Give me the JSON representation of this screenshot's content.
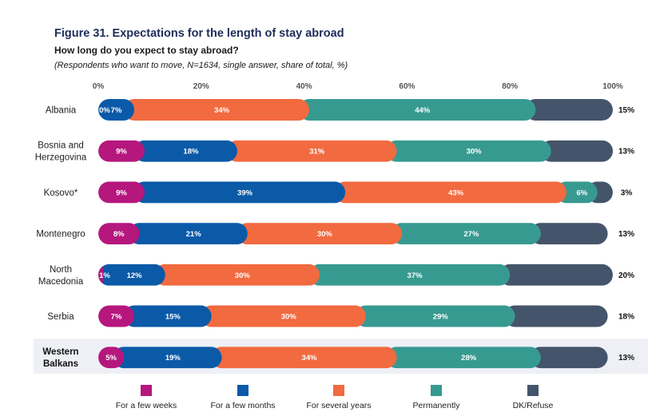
{
  "figure": {
    "title": "Figure 31.  Expectations for the length of stay abroad",
    "subtitle": "How long do you expect to stay abroad?",
    "note": "(Respondents who want to move, N=1634, single answer, share of total, %)"
  },
  "chart_data": {
    "type": "bar",
    "orientation": "horizontal",
    "stacked": true,
    "xlim": [
      0,
      100
    ],
    "x_ticks": [
      "0%",
      "20%",
      "40%",
      "60%",
      "80%",
      "100%"
    ],
    "grid": false,
    "legend_position": "bottom",
    "categories": [
      [
        "Albania"
      ],
      [
        "Bosnia and",
        "Herzegovina"
      ],
      [
        "Kosovo*"
      ],
      [
        "Montenegro"
      ],
      [
        "North",
        "Macedonia"
      ],
      [
        "Serbia"
      ],
      [
        "Western",
        "Balkans"
      ]
    ],
    "highlight_category_index": 6,
    "series": [
      {
        "name": "For a few weeks",
        "color": "#b5177d",
        "values": [
          0,
          9,
          9,
          8,
          1,
          7,
          5
        ]
      },
      {
        "name": "For a few months",
        "color": "#0a5aa8",
        "values": [
          7,
          18,
          39,
          21,
          12,
          15,
          19
        ]
      },
      {
        "name": "For several years",
        "color": "#f26a3f",
        "values": [
          34,
          31,
          43,
          30,
          30,
          30,
          34
        ]
      },
      {
        "name": "Permanently",
        "color": "#379a91",
        "values": [
          44,
          30,
          6,
          27,
          37,
          29,
          28
        ]
      },
      {
        "name": "DK/Refuse",
        "color": "#44546a",
        "values": [
          15,
          13,
          3,
          13,
          20,
          18,
          13
        ]
      }
    ]
  }
}
